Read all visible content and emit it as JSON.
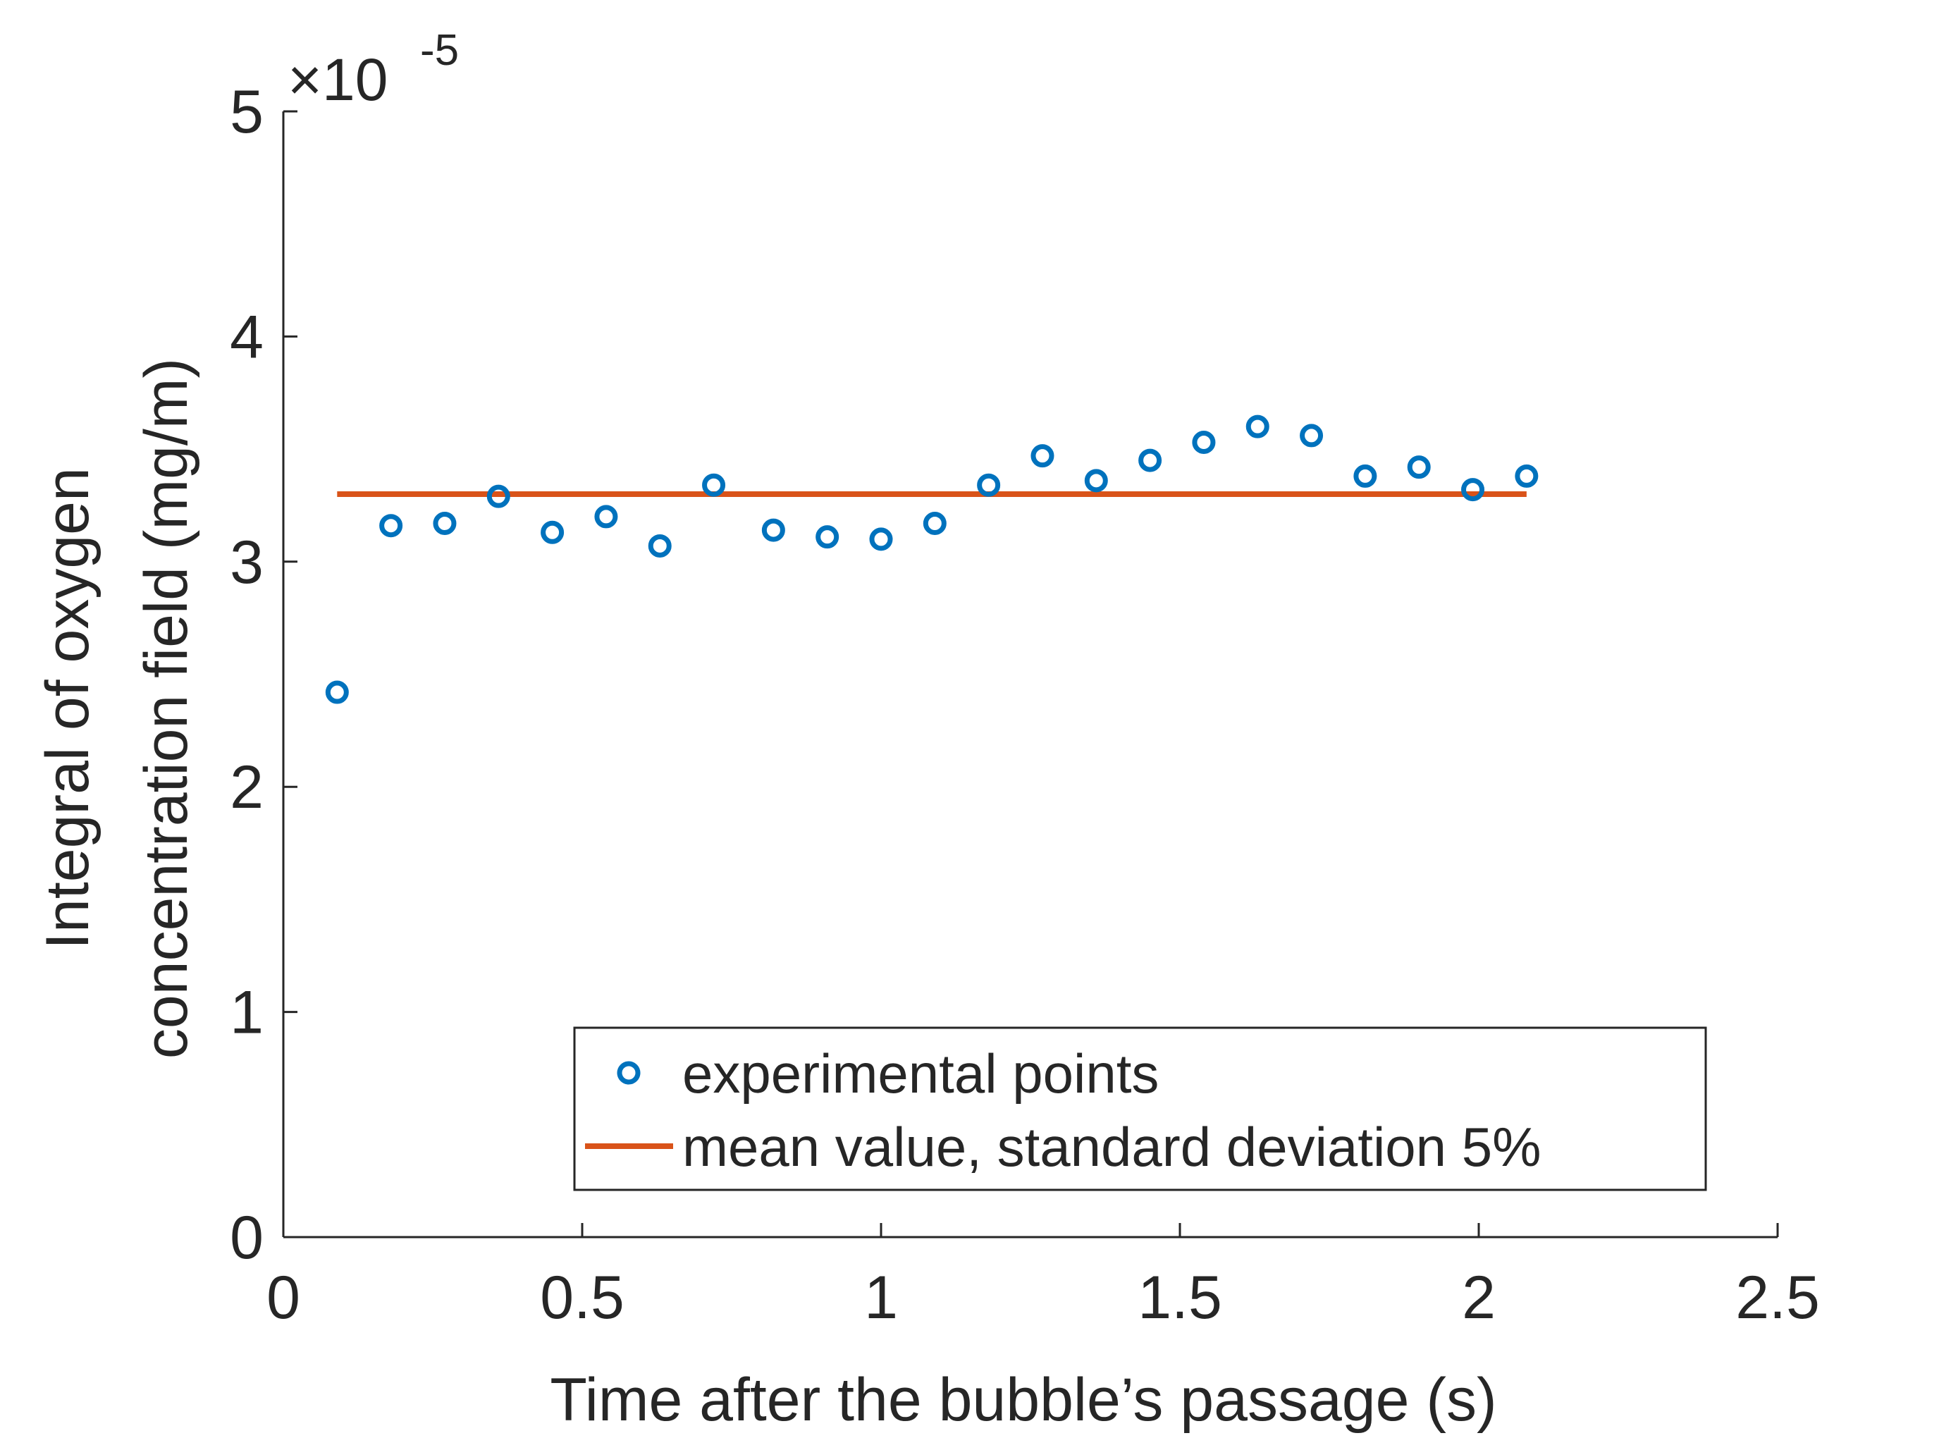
{
  "chart_data": {
    "type": "scatter",
    "title": "",
    "xlabel": "Time after the bubble’s passage (s)",
    "ylabel_line1": "Integral of oxygen",
    "ylabel_line2": "concentration field (mg/m)",
    "xlim": [
      0,
      2.5
    ],
    "ylim": [
      0,
      5
    ],
    "y_exponent": {
      "base": "×10",
      "power": "-5"
    },
    "x_ticks": [
      0,
      0.5,
      1,
      1.5,
      2,
      2.5
    ],
    "x_tick_labels": [
      "0",
      "0.5",
      "1",
      "1.5",
      "2",
      "2.5"
    ],
    "y_ticks": [
      0,
      1,
      2,
      3,
      4,
      5
    ],
    "y_tick_labels": [
      "0",
      "1",
      "2",
      "3",
      "4",
      "5"
    ],
    "grid": false,
    "legend_position": "bottom-right",
    "series": [
      {
        "name": "experimental points",
        "kind": "scatter",
        "color": "#0072BD",
        "x": [
          0.09,
          0.18,
          0.27,
          0.36,
          0.45,
          0.54,
          0.63,
          0.72,
          0.82,
          0.91,
          1.0,
          1.09,
          1.18,
          1.27,
          1.36,
          1.45,
          1.54,
          1.63,
          1.72,
          1.81,
          1.9,
          1.99,
          2.08
        ],
        "y": [
          2.42,
          3.16,
          3.17,
          3.29,
          3.13,
          3.2,
          3.07,
          3.34,
          3.14,
          3.11,
          3.1,
          3.17,
          3.34,
          3.47,
          3.36,
          3.45,
          3.53,
          3.6,
          3.56,
          3.38,
          3.42,
          3.32,
          3.38
        ]
      },
      {
        "name": "mean value, standard deviation 5%",
        "kind": "line",
        "color": "#D95319",
        "x": [
          0.09,
          2.08
        ],
        "y": [
          3.3,
          3.3
        ]
      }
    ]
  }
}
